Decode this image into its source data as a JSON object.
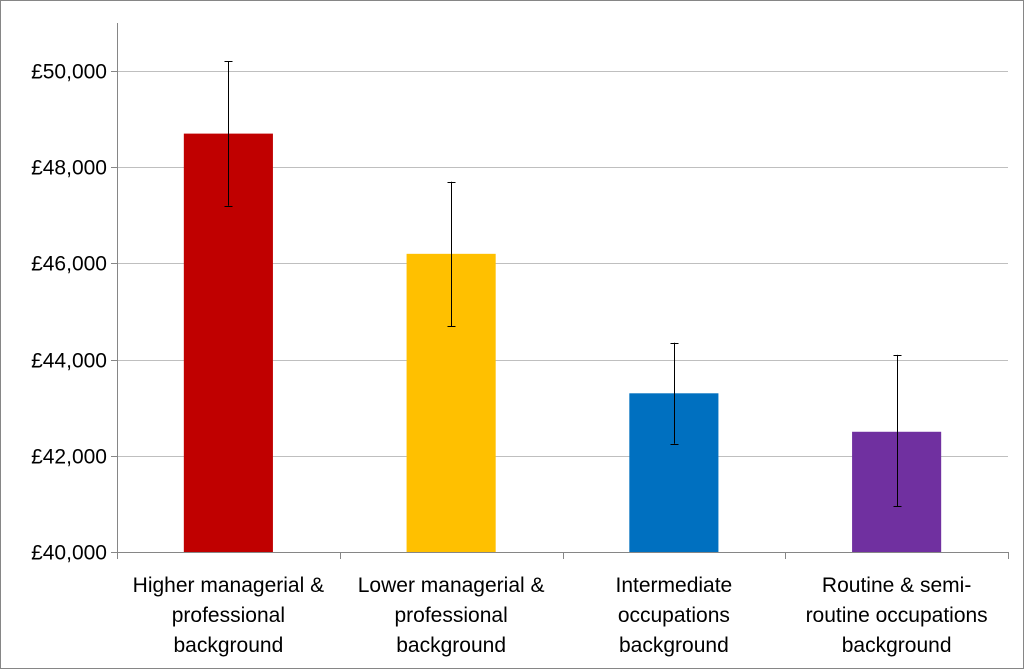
{
  "chart_data": {
    "type": "bar",
    "categories": [
      "Higher managerial & professional background",
      "Lower managerial & professional background",
      "Intermediate occupations background",
      "Routine & semi-routine occupations background"
    ],
    "category_label_lines": [
      [
        "Higher managerial &",
        "professional",
        "background"
      ],
      [
        "Lower managerial &",
        "professional",
        "background"
      ],
      [
        "Intermediate",
        "occupations",
        "background"
      ],
      [
        "Routine & semi-",
        "routine occupations",
        "background"
      ]
    ],
    "values": [
      48700,
      46200,
      43300,
      42500
    ],
    "error_low": [
      47200,
      44700,
      42250,
      40950
    ],
    "error_high": [
      50200,
      47700,
      44350,
      44100
    ],
    "colors": [
      "#C00000",
      "#FFC000",
      "#0070C0",
      "#7030A0"
    ],
    "title": "",
    "xlabel": "",
    "ylabel": "",
    "ylim": [
      40000,
      51000
    ],
    "yticks": [
      40000,
      42000,
      44000,
      46000,
      48000,
      50000
    ],
    "ytick_labels": [
      "£40,000",
      "£42,000",
      "£44,000",
      "£46,000",
      "£48,000",
      "£50,000"
    ],
    "grid": true,
    "legend": "none"
  }
}
